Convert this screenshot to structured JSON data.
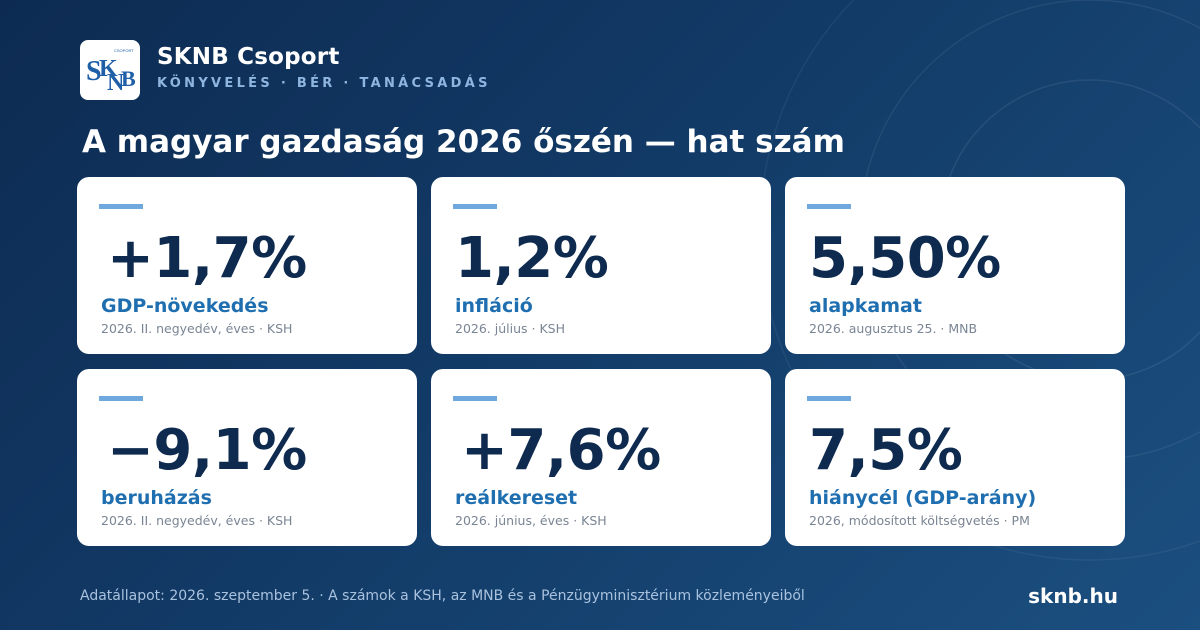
{
  "brand": {
    "logo_text": "SKNB",
    "logo_small": "CSOPORT",
    "name": "SKNB Csoport",
    "tagline": "KÖNYVELÉS · BÉR · TANÁCSADÁS"
  },
  "headline": "A magyar gazdaság 2026 őszén — hat szám",
  "cards": [
    {
      "value": "+1,7%",
      "label": "GDP-növekedés",
      "source": "2026. II. negyedév, éves · KSH"
    },
    {
      "value": "1,2%",
      "label": "infláció",
      "source": "2026. július · KSH"
    },
    {
      "value": "5,50%",
      "label": "alapkamat",
      "source": "2026. augusztus 25. · MNB"
    },
    {
      "value": "−9,1%",
      "label": "beruházás",
      "source": "2026. II. negyedév, éves · KSH"
    },
    {
      "value": "+7,6%",
      "label": "reálkereset",
      "source": "2026. június, éves · KSH"
    },
    {
      "value": "7,5%",
      "label": "hiánycél (GDP-arány)",
      "source": "2026, módosított költségvetés · PM"
    }
  ],
  "footer": {
    "note": "Adatállapot: 2026. szeptember 5. · A számok a KSH, az MNB és a Pénzügyminisztérium közleményeiből",
    "url": "sknb.hu"
  },
  "colors": {
    "background": "#123a66",
    "card": "#ffffff",
    "value": "#0e2a4f",
    "label": "#1f6fb0",
    "accent": "#6fa8dc"
  }
}
